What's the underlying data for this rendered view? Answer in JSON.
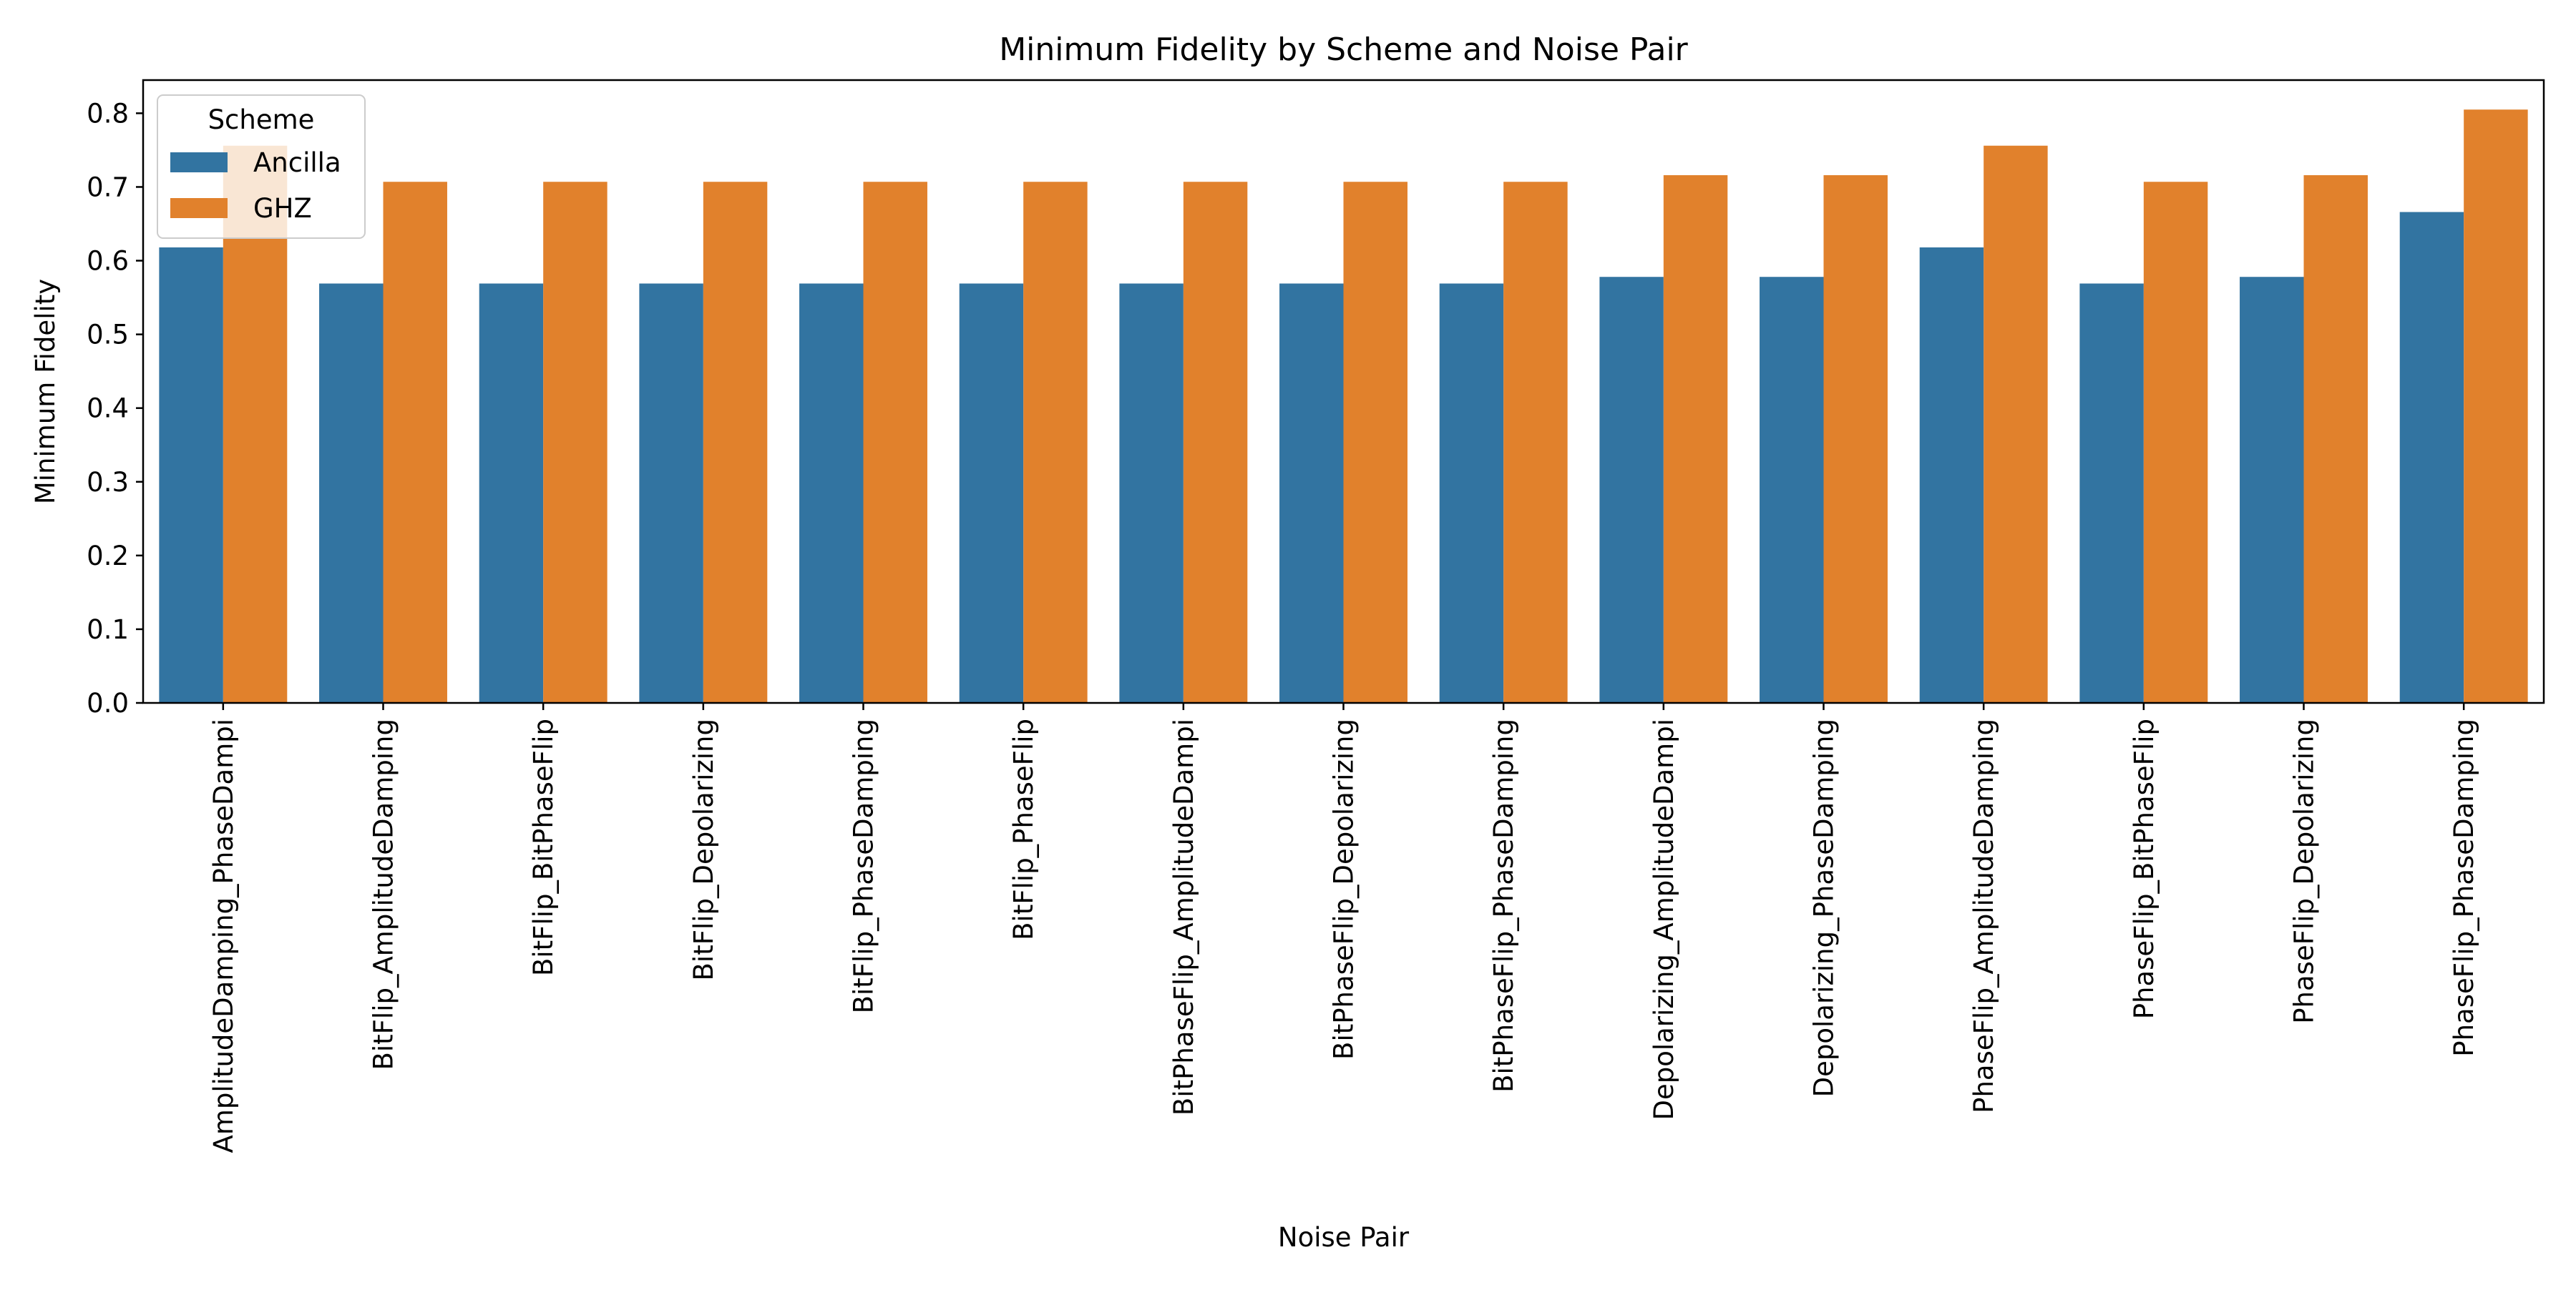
{
  "chart_data": {
    "type": "bar",
    "title": "Minimum Fidelity by Scheme and Noise Pair",
    "xlabel": "Noise Pair",
    "ylabel": "Minimum Fidelity",
    "ylim": [
      0,
      0.845
    ],
    "yticks": [
      "0.0",
      "0.1",
      "0.2",
      "0.3",
      "0.4",
      "0.5",
      "0.6",
      "0.7",
      "0.8"
    ],
    "grid": false,
    "legend": {
      "title": "Scheme",
      "placement": "top-left"
    },
    "categories": [
      "AmplitudeDamping_PhaseDampi",
      "BitFlip_AmplitudeDamping",
      "BitFlip_BitPhaseFlip",
      "BitFlip_Depolarizing",
      "BitFlip_PhaseDamping",
      "BitFlip_PhaseFlip",
      "BitPhaseFlip_AmplitudeDampi",
      "BitPhaseFlip_Depolarizing",
      "BitPhaseFlip_PhaseDamping",
      "Depolarizing_AmplitudeDampi",
      "Depolarizing_PhaseDamping",
      "PhaseFlip_AmplitudeDamping",
      "PhaseFlip_BitPhaseFlip",
      "PhaseFlip_Depolarizing",
      "PhaseFlip_PhaseDamping"
    ],
    "series": [
      {
        "name": "Ancilla",
        "color": "#3274a1",
        "values": [
          0.618,
          0.569,
          0.569,
          0.569,
          0.569,
          0.569,
          0.569,
          0.569,
          0.569,
          0.578,
          0.578,
          0.618,
          0.569,
          0.578,
          0.666
        ]
      },
      {
        "name": "GHZ",
        "color": "#e1812c",
        "values": [
          0.756,
          0.707,
          0.707,
          0.707,
          0.707,
          0.707,
          0.707,
          0.707,
          0.707,
          0.716,
          0.716,
          0.756,
          0.707,
          0.716,
          0.805
        ]
      }
    ]
  }
}
